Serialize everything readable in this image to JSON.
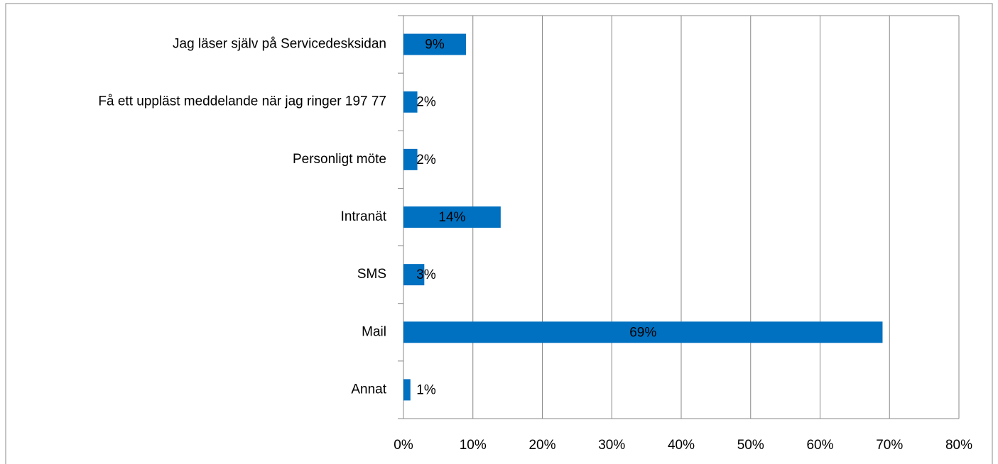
{
  "chart_data": {
    "type": "barh",
    "categories": [
      "Jag läser själv på Servicedesksidan",
      "Få ett uppläst meddelande när jag ringer 197 77",
      "Personligt möte",
      "Intranät",
      "SMS",
      "Mail",
      "Annat"
    ],
    "values": [
      9,
      2,
      2,
      14,
      3,
      69,
      1
    ],
    "value_labels": [
      "9%",
      "2%",
      "2%",
      "14%",
      "3%",
      "69%",
      "1%"
    ],
    "color": "#0070c0",
    "xlim": [
      0,
      80
    ],
    "xticks": [
      {
        "value": 0,
        "label": "0%"
      },
      {
        "value": 10,
        "label": "10%"
      },
      {
        "value": 20,
        "label": "20%"
      },
      {
        "value": 30,
        "label": "30%"
      },
      {
        "value": 40,
        "label": "40%"
      },
      {
        "value": 50,
        "label": "50%"
      },
      {
        "value": 60,
        "label": "60%"
      },
      {
        "value": 70,
        "label": "70%"
      },
      {
        "value": 80,
        "label": "80%"
      }
    ],
    "grid": true
  }
}
